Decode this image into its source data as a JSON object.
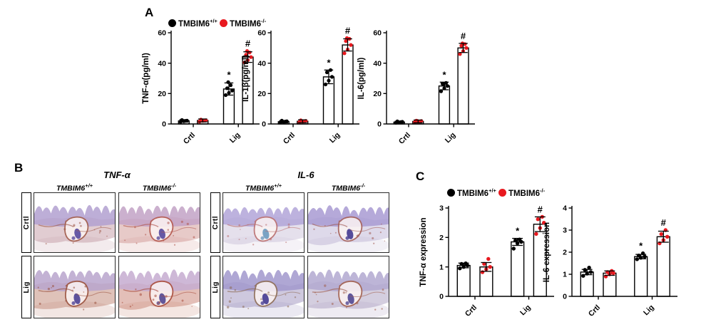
{
  "colors": {
    "wt": "#000000",
    "ko": "#e8191f",
    "bar_fill": "#ffffff",
    "axis": "#000000"
  },
  "legend": {
    "wt": {
      "name": "TMBIM6",
      "sup": "+/+"
    },
    "ko": {
      "name": "TMBIM6",
      "sup": "-/-"
    }
  },
  "panels": {
    "a": {
      "label": "A"
    },
    "b": {
      "label": "B",
      "groups": [
        {
          "title": "TNF-α",
          "columns": [
            {
              "name": "TMBIM6",
              "sup": "+/+"
            },
            {
              "name": "TMBIM6",
              "sup": "-/-"
            }
          ],
          "rows": [
            {
              "label": "Crtl",
              "images": [
                {
                  "teeth": "#b2a0d0",
                  "tissue": "#c9a3ab",
                  "accent": "#a05a48",
                  "pulp": "#5a4c9e"
                },
                {
                  "teeth": "#c2a2c6",
                  "tissue": "#d49f9b",
                  "accent": "#b1544a",
                  "pulp": "#5a4c9e"
                }
              ]
            },
            {
              "label": "Lig",
              "images": [
                {
                  "teeth": "#b9a4cc",
                  "tissue": "#c58f7f",
                  "accent": "#99503c",
                  "pulp": "#4f4496"
                },
                {
                  "teeth": "#c6abd0",
                  "tissue": "#cc8b7d",
                  "accent": "#a74a3a",
                  "pulp": "#564a92"
                }
              ]
            }
          ]
        },
        {
          "title": "IL-6",
          "columns": [
            {
              "name": "TMBIM6",
              "sup": "+/+"
            },
            {
              "name": "TMBIM6",
              "sup": "-/-"
            }
          ],
          "rows": [
            {
              "label": "Crtl",
              "images": [
                {
                  "teeth": "#b1a5d8",
                  "tissue": "#d0c6dc",
                  "accent": "#b96e6e",
                  "pulp": "#6f9cc0"
                },
                {
                  "teeth": "#a89ad2",
                  "tissue": "#c3b9d8",
                  "accent": "#a25c55",
                  "pulp": "#473d92"
                }
              ]
            },
            {
              "label": "Lig",
              "images": [
                {
                  "teeth": "#a198cc",
                  "tissue": "#a69bc2",
                  "accent": "#8c6a54",
                  "pulp": "#473d92"
                },
                {
                  "teeth": "#b2a8d0",
                  "tissue": "#b1a6c4",
                  "accent": "#a05e4c",
                  "pulp": "#534a94"
                }
              ]
            }
          ]
        }
      ]
    },
    "c": {
      "label": "C"
    }
  },
  "chart_data": [
    {
      "type": "bar",
      "ylabel": "TNF-α(pg/ml)",
      "ylim": [
        0,
        60
      ],
      "yticks": [
        0,
        20,
        40,
        60
      ],
      "categories": [
        "Crtl",
        "Lig"
      ],
      "legend_position": "top",
      "grid": false,
      "series": [
        {
          "name": "TMBIM6+/+",
          "color": "#000000",
          "values": [
            2,
            23
          ],
          "errors": [
            0.8,
            4
          ],
          "points": [
            [
              1.4,
              1.8,
              2.2,
              2.6,
              2.0
            ],
            [
              19,
              20.5,
              22,
              23.5,
              25.5,
              27.5
            ]
          ],
          "sig": [
            "",
            "*"
          ]
        },
        {
          "name": "TMBIM6-/-",
          "color": "#e8191f",
          "values": [
            2.3,
            44
          ],
          "errors": [
            1.0,
            3.5
          ],
          "points": [
            [
              1.6,
              2.0,
              2.4,
              2.9,
              2.2
            ],
            [
              40.5,
              42,
              44,
              45.5,
              47,
              48
            ]
          ],
          "sig": [
            "",
            "#"
          ]
        }
      ]
    },
    {
      "type": "bar",
      "ylabel": "IL-1β(pg/ml)",
      "ylim": [
        0,
        60
      ],
      "yticks": [
        0,
        20,
        40,
        60
      ],
      "categories": [
        "Crtl",
        "Lig"
      ],
      "grid": false,
      "series": [
        {
          "name": "TMBIM6+/+",
          "color": "#000000",
          "values": [
            1.5,
            31
          ],
          "errors": [
            0.7,
            4.5
          ],
          "points": [
            [
              1.0,
              1.4,
              1.8,
              2.2,
              1.6
            ],
            [
              26,
              28.5,
              31,
              34,
              35.5
            ]
          ],
          "sig": [
            "",
            "*"
          ]
        },
        {
          "name": "TMBIM6-/-",
          "color": "#e8191f",
          "values": [
            1.8,
            52
          ],
          "errors": [
            0.9,
            4
          ],
          "points": [
            [
              1.2,
              1.6,
              2.0,
              2.4,
              1.8
            ],
            [
              46.5,
              49,
              52,
              54.5,
              56,
              56.5
            ]
          ],
          "sig": [
            "",
            "#"
          ]
        }
      ]
    },
    {
      "type": "bar",
      "ylabel": "IL-6(pg/ml)",
      "ylim": [
        0,
        60
      ],
      "yticks": [
        0,
        20,
        40,
        60
      ],
      "categories": [
        "Crtl",
        "Lig"
      ],
      "grid": false,
      "series": [
        {
          "name": "TMBIM6+/+",
          "color": "#000000",
          "values": [
            1.2,
            25
          ],
          "errors": [
            0.6,
            2.5
          ],
          "points": [
            [
              0.8,
              1.1,
              1.4,
              1.7,
              1.2
            ],
            [
              21.5,
              23.5,
              25,
              26.5,
              27,
              26
            ]
          ],
          "sig": [
            "",
            "*"
          ]
        },
        {
          "name": "TMBIM6-/-",
          "color": "#e8191f",
          "values": [
            1.7,
            50
          ],
          "errors": [
            0.9,
            3
          ],
          "points": [
            [
              1.2,
              1.5,
              1.9,
              2.2,
              1.6,
              2.0
            ],
            [
              46,
              48,
              50,
              51.5,
              52.5,
              53
            ]
          ],
          "sig": [
            "",
            "#"
          ]
        }
      ]
    },
    {
      "type": "bar",
      "ylabel": "TNF-α expression",
      "ylim": [
        0,
        3
      ],
      "yticks": [
        0,
        1,
        2,
        3
      ],
      "categories": [
        "Crtl",
        "Lig"
      ],
      "grid": false,
      "series": [
        {
          "name": "TMBIM6+/+",
          "color": "#000000",
          "values": [
            1.05,
            1.85
          ],
          "errors": [
            0.08,
            0.12
          ],
          "points": [
            [
              0.95,
              1.0,
              1.05,
              1.1,
              1.12
            ],
            [
              1.62,
              1.8,
              1.85,
              1.9,
              1.93
            ]
          ],
          "sig": [
            "",
            "*"
          ]
        },
        {
          "name": "TMBIM6-/-",
          "color": "#e8191f",
          "values": [
            1.0,
            2.45
          ],
          "errors": [
            0.15,
            0.25
          ],
          "points": [
            [
              0.82,
              0.92,
              1.0,
              1.1,
              1.27
            ],
            [
              2.12,
              2.32,
              2.5,
              2.62,
              2.7
            ]
          ],
          "sig": [
            "",
            "#"
          ]
        }
      ]
    },
    {
      "type": "bar",
      "ylabel": "IL-6 expression",
      "ylim": [
        0,
        4
      ],
      "yticks": [
        0,
        1,
        2,
        3,
        4
      ],
      "categories": [
        "Crtl",
        "Lig"
      ],
      "grid": false,
      "series": [
        {
          "name": "TMBIM6+/+",
          "color": "#000000",
          "values": [
            1.1,
            1.8
          ],
          "errors": [
            0.12,
            0.1
          ],
          "points": [
            [
              0.93,
              1.03,
              1.1,
              1.2,
              1.3
            ],
            [
              1.68,
              1.75,
              1.8,
              1.85,
              1.95
            ]
          ],
          "sig": [
            "",
            "*"
          ]
        },
        {
          "name": "TMBIM6-/-",
          "color": "#e8191f",
          "values": [
            1.05,
            2.7
          ],
          "errors": [
            0.1,
            0.25
          ],
          "points": [
            [
              0.9,
              1.0,
              1.05,
              1.1,
              1.15
            ],
            [
              2.4,
              2.55,
              2.7,
              2.82,
              3.0
            ]
          ],
          "sig": [
            "",
            "#"
          ]
        }
      ]
    }
  ]
}
